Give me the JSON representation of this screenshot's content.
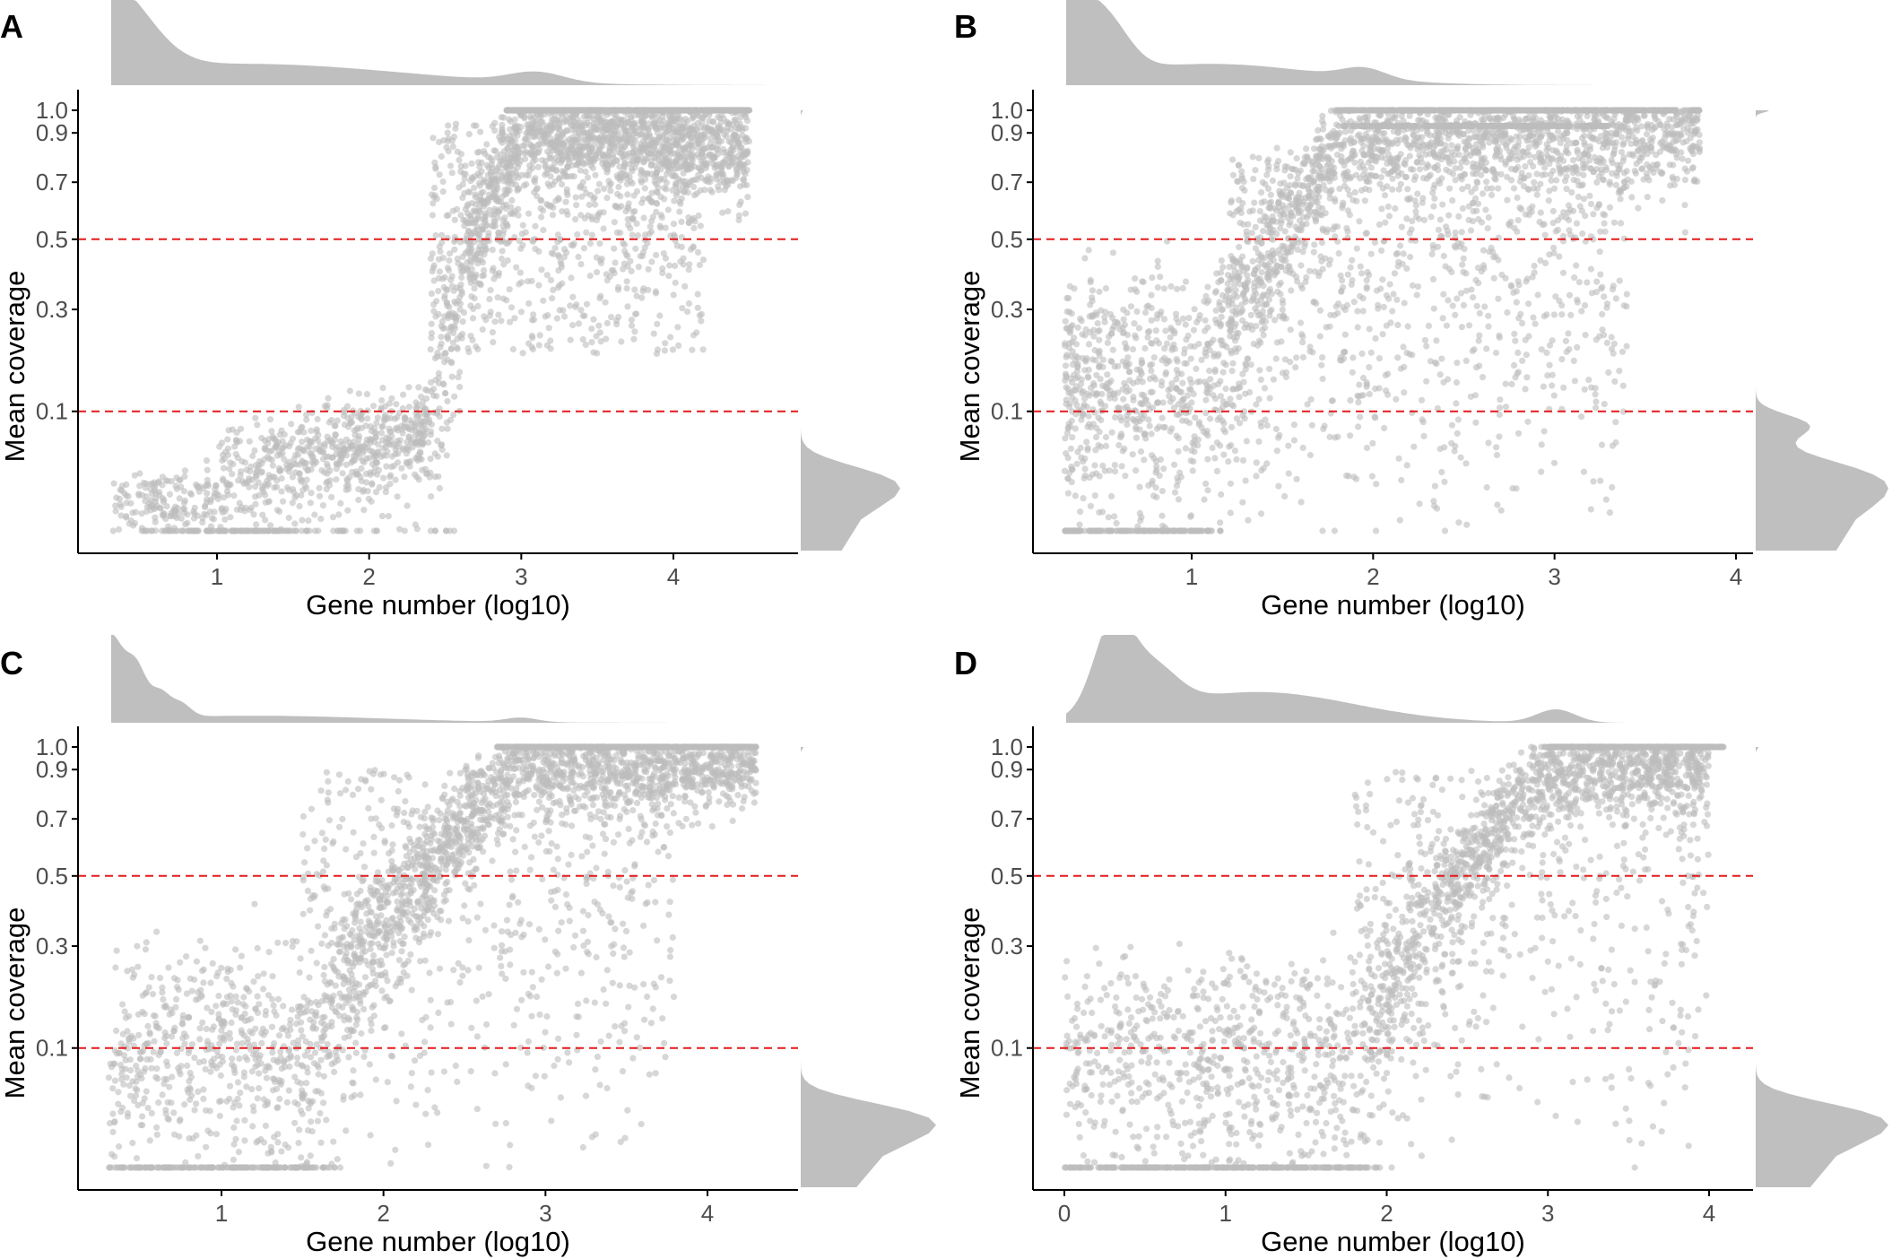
{
  "colors": {
    "points": "#bdbdbd",
    "density": "#bfbfbf",
    "threshold": "#e41a1c",
    "axis": "#000000",
    "tick_text": "#4d4d4d"
  },
  "chart_data": [
    {
      "panel": "A",
      "type": "scatter",
      "xlabel": "Gene number (log10)",
      "ylabel": "Mean coverage",
      "xlim": [
        0.3,
        4.75
      ],
      "ylim": [
        0,
        1.02
      ],
      "x_ticks": [
        "1",
        "2",
        "3",
        "4"
      ],
      "y_ticks": [
        "0.1",
        "0.3",
        "0.5",
        "0.7",
        "0.9",
        "1.0"
      ],
      "y_scale": "sqrt",
      "thresholds": [
        0.1,
        0.5
      ],
      "marginal_x": "density, mode near 0.3, secondary peak near 3.1",
      "marginal_y": "density, mode near 0.0",
      "grid": false
    },
    {
      "panel": "B",
      "type": "scatter",
      "xlabel": "Gene number (log10)",
      "ylabel": "Mean coverage",
      "xlim": [
        0.3,
        4.1
      ],
      "ylim": [
        0,
        1.02
      ],
      "x_ticks": [
        "1",
        "2",
        "3",
        "4"
      ],
      "y_ticks": [
        "0.1",
        "0.3",
        "0.5",
        "0.7",
        "0.9",
        "1.0"
      ],
      "y_scale": "sqrt",
      "thresholds": [
        0.1,
        0.5
      ],
      "marginal_x": "density, mode near 0.3, peaks near 0.5 and 1.95",
      "marginal_y": "density, modes near 0.02 and 0.08, small peak near 1.0",
      "grid": false
    },
    {
      "panel": "C",
      "type": "scatter",
      "xlabel": "Gene number (log10)",
      "ylabel": "Mean coverage",
      "xlim": [
        0.3,
        4.45
      ],
      "ylim": [
        0,
        1.02
      ],
      "x_ticks": [
        "1",
        "2",
        "3",
        "4"
      ],
      "y_ticks": [
        "0.1",
        "0.3",
        "0.5",
        "0.7",
        "0.9",
        "1.0"
      ],
      "y_scale": "sqrt",
      "thresholds": [
        0.1,
        0.5
      ],
      "marginal_x": "density, peaks near 0.3, 0.48, 0.6, 0.7; small peak near 2.85",
      "marginal_y": "density, mode near 0.02",
      "grid": false
    },
    {
      "panel": "D",
      "type": "scatter",
      "xlabel": "Gene number (log10)",
      "ylabel": "Mean coverage",
      "xlim": [
        -0.1,
        4.3
      ],
      "ylim": [
        0,
        1.02
      ],
      "x_ticks": [
        "0",
        "1",
        "2",
        "3",
        "4"
      ],
      "y_ticks": [
        "0.1",
        "0.3",
        "0.5",
        "0.7",
        "0.9",
        "1.0"
      ],
      "y_scale": "sqrt",
      "thresholds": [
        0.1,
        0.5
      ],
      "marginal_x": "density, mode near 0.3, secondary peak near 3.05",
      "marginal_y": "density, mode near 0.02",
      "grid": false
    }
  ]
}
